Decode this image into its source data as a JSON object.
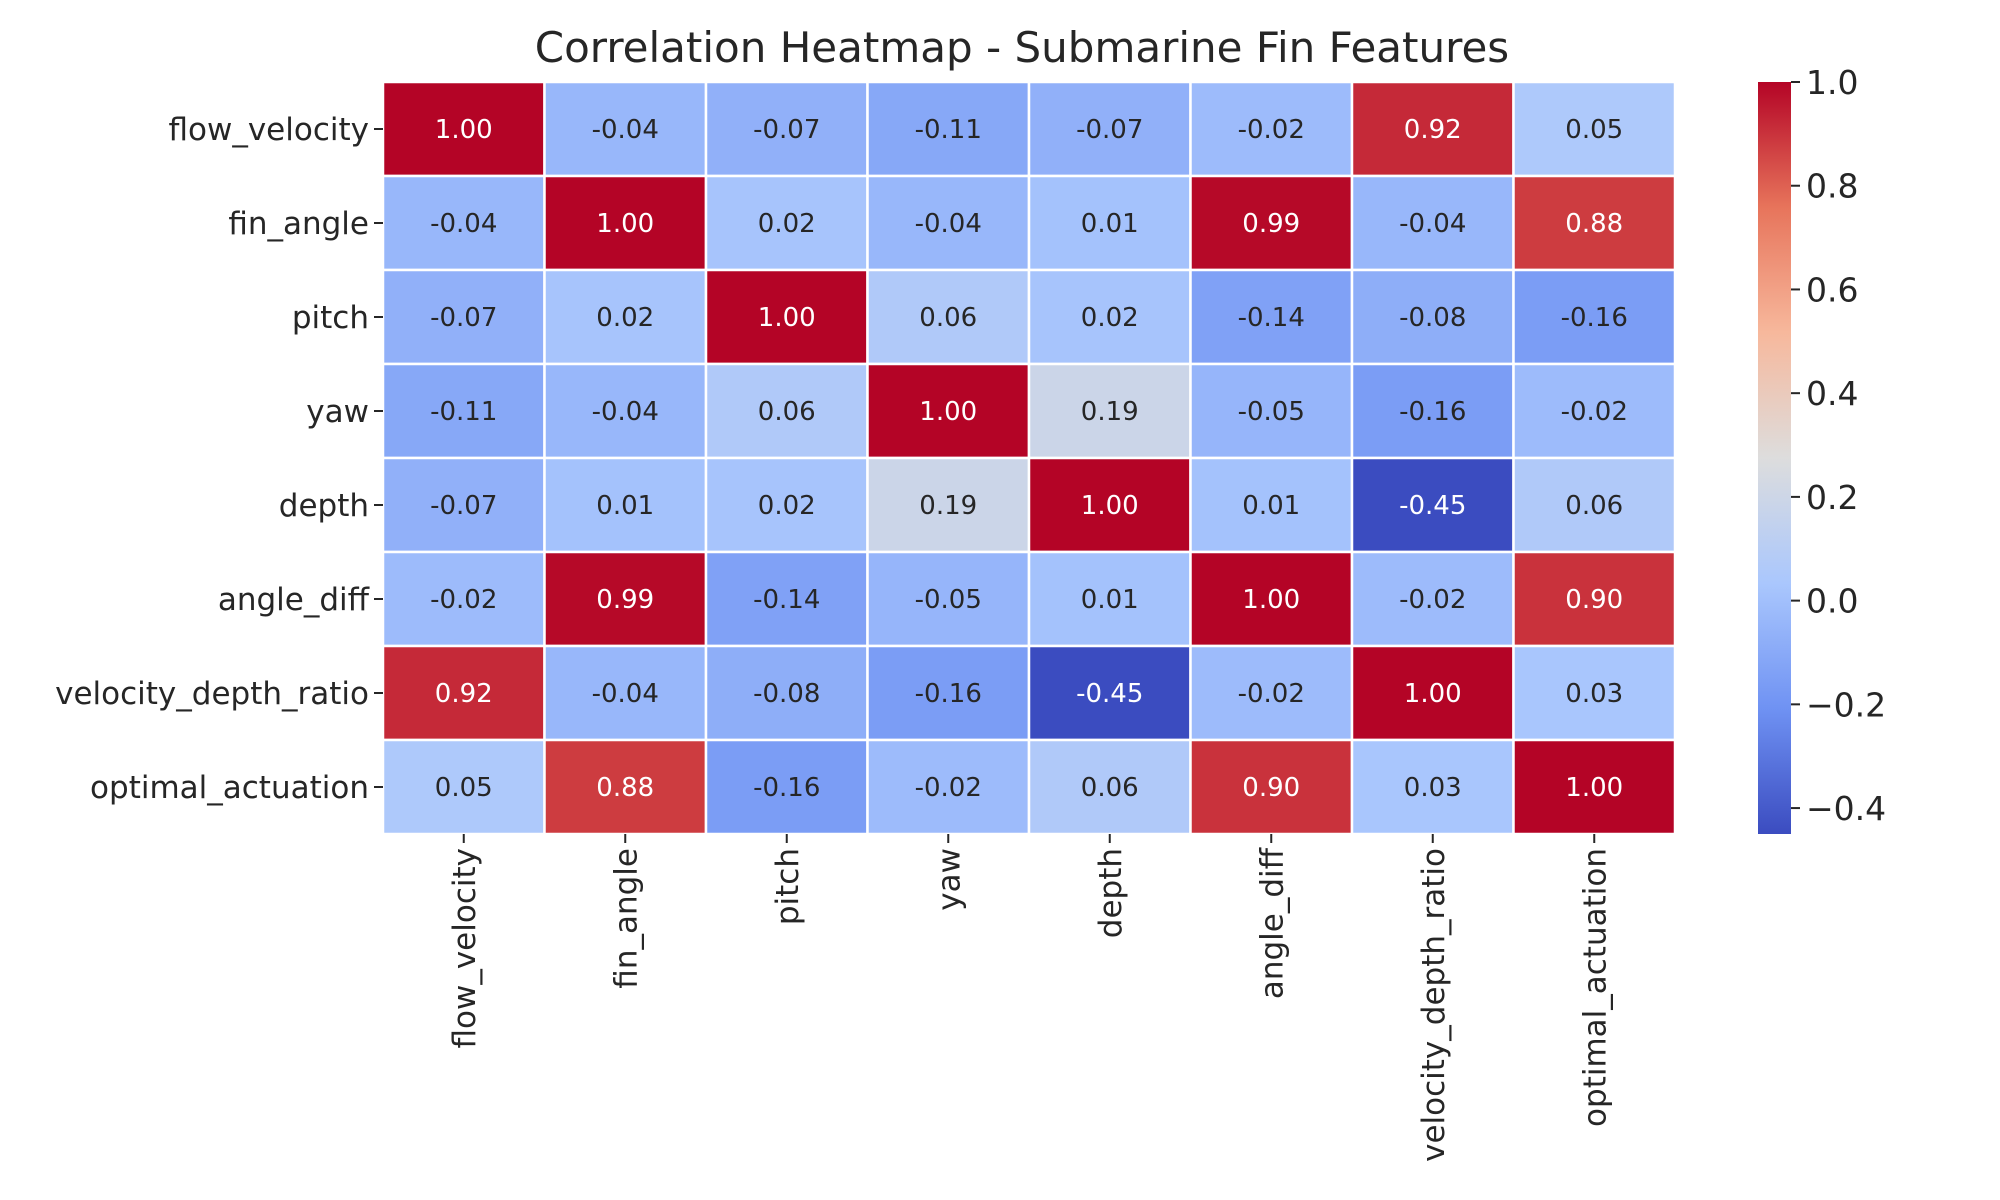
{
  "chart_data": {
    "type": "heatmap",
    "title": "Correlation Heatmap - Submarine Fin Features",
    "xlabel": "",
    "ylabel": "",
    "x_categories": [
      "flow_velocity",
      "fin_angle",
      "pitch",
      "yaw",
      "depth",
      "angle_diff",
      "velocity_depth_ratio",
      "optimal_actuation"
    ],
    "y_categories": [
      "flow_velocity",
      "fin_angle",
      "pitch",
      "yaw",
      "depth",
      "angle_diff",
      "velocity_depth_ratio",
      "optimal_actuation"
    ],
    "values": [
      [
        1.0,
        -0.04,
        -0.07,
        -0.11,
        -0.07,
        -0.02,
        0.92,
        0.05
      ],
      [
        -0.04,
        1.0,
        0.02,
        -0.04,
        0.01,
        0.99,
        -0.04,
        0.88
      ],
      [
        -0.07,
        0.02,
        1.0,
        0.06,
        0.02,
        -0.14,
        -0.08,
        -0.16
      ],
      [
        -0.11,
        -0.04,
        0.06,
        1.0,
        0.19,
        -0.05,
        -0.16,
        -0.02
      ],
      [
        -0.07,
        0.01,
        0.02,
        0.19,
        1.0,
        0.01,
        -0.45,
        0.06
      ],
      [
        -0.02,
        0.99,
        -0.14,
        -0.05,
        0.01,
        1.0,
        -0.02,
        0.9
      ],
      [
        0.92,
        -0.04,
        -0.08,
        -0.16,
        -0.45,
        -0.02,
        1.0,
        0.03
      ],
      [
        0.05,
        0.88,
        -0.16,
        -0.02,
        0.06,
        0.9,
        0.03,
        1.0
      ]
    ],
    "value_format": "0.00",
    "colormap": "coolwarm",
    "colormap_stops": [
      "#3b4cc0",
      "#6f92f3",
      "#aac7fd",
      "#dddddd",
      "#f7b89c",
      "#e7745b",
      "#b40426"
    ],
    "vmin": -0.45,
    "vmax": 1.0,
    "colorbar": {
      "ticks": [
        1.0,
        0.8,
        0.6,
        0.4,
        0.2,
        0.0,
        -0.2,
        -0.4
      ],
      "tick_labels": [
        "1.0",
        "0.8",
        "0.6",
        "0.4",
        "0.2",
        "0.0",
        "−0.2",
        "−0.4"
      ],
      "placement": "right"
    },
    "cell_border_color": "#ffffff",
    "annotate": true
  }
}
